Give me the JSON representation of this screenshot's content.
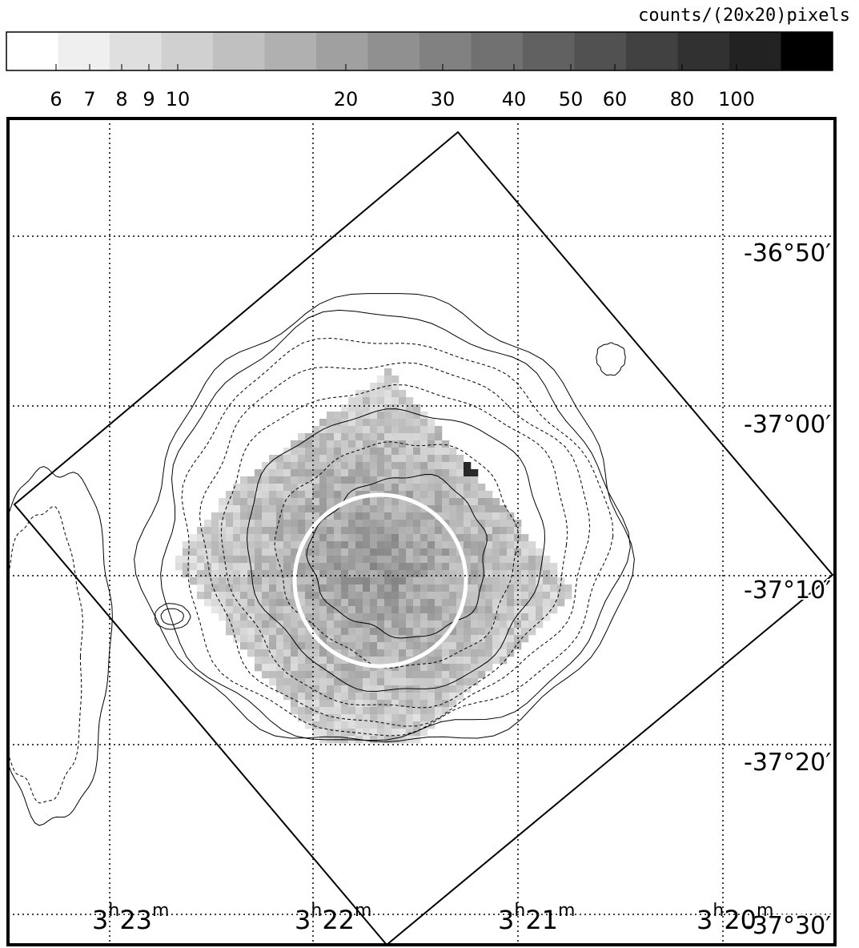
{
  "colorbar": {
    "title": "counts/(20x20)pixels",
    "ticks": [
      "6",
      "7",
      "8",
      "9",
      "10",
      "20",
      "30",
      "40",
      "50",
      "60",
      "80",
      "100"
    ]
  },
  "dec_labels": [
    "-36°50′",
    "-37°00′",
    "-37°10′",
    "-37°20′",
    "-37°30′"
  ],
  "ra_labels": [
    {
      "hours": "3",
      "hours_unit": "h",
      "minutes": "23",
      "minutes_unit": "m"
    },
    {
      "hours": "3",
      "hours_unit": "h",
      "minutes": "22",
      "minutes_unit": "m"
    },
    {
      "hours": "3",
      "hours_unit": "h",
      "minutes": "21",
      "minutes_unit": "m"
    },
    {
      "hours": "3",
      "hours_unit": "h",
      "minutes": "20",
      "minutes_unit": "m"
    }
  ]
}
